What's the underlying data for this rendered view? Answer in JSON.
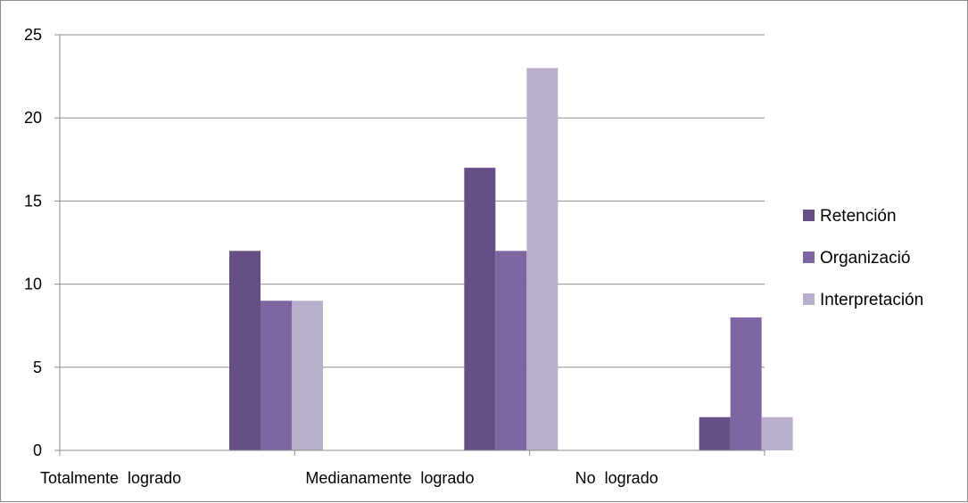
{
  "chart_data": {
    "type": "bar",
    "categories": [
      "Totalmente  logrado",
      "Medianamente  logrado",
      "No  logrado"
    ],
    "series": [
      {
        "name": "Retención",
        "values": [
          12,
          17,
          2
        ],
        "color": "#674f86"
      },
      {
        "name": "Organizació",
        "values": [
          9,
          12,
          8
        ],
        "color": "#7f66a2"
      },
      {
        "name": "Interpretación",
        "values": [
          9,
          23,
          2
        ],
        "color": "#b9aecb"
      }
    ],
    "ylim": [
      0,
      25
    ],
    "yticks": [
      "0",
      "5",
      "10",
      "15",
      "20",
      "25"
    ],
    "grid": true,
    "legend_position": "right"
  }
}
